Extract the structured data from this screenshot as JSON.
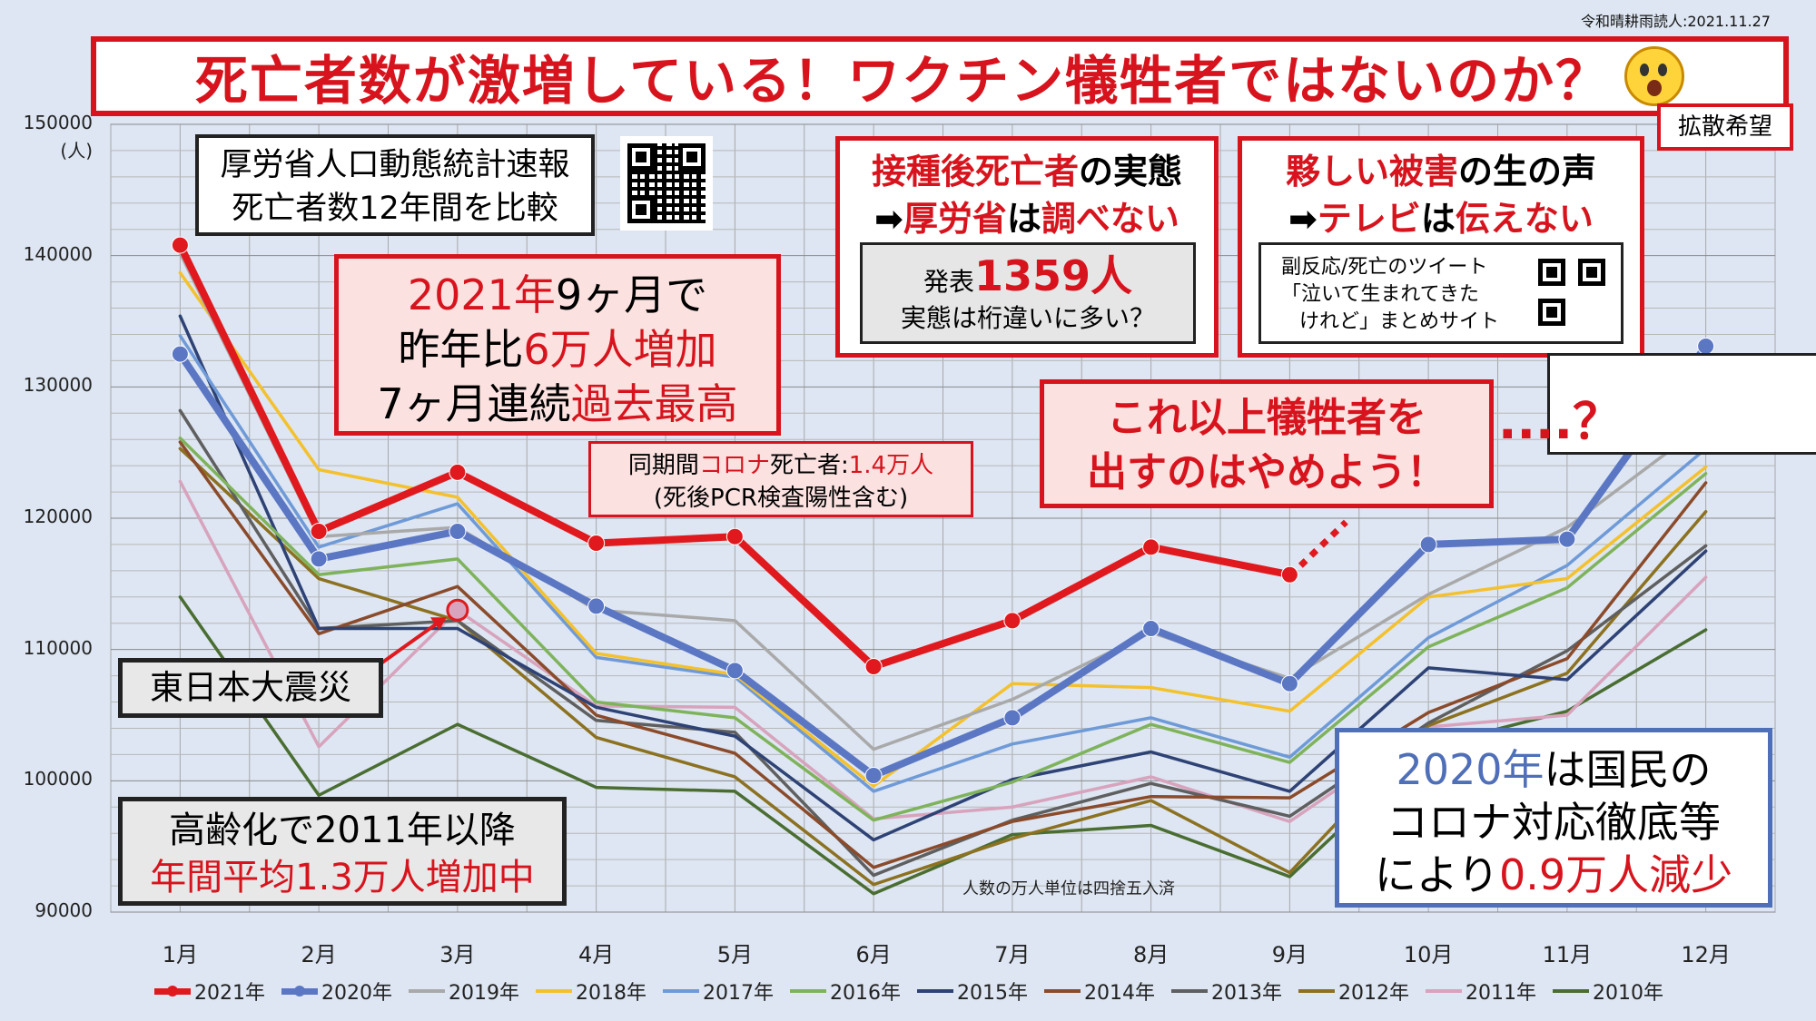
{
  "credit": "令和晴耕雨読人:2021.11.27",
  "title": "死亡者数が激増している！ワクチン犠牲者ではないのか？",
  "spread": "拡散希望",
  "source_box": {
    "line1": "厚労省人口動態統計速報",
    "line2": "死亡者数12年間を比較"
  },
  "box2021": {
    "l1_red": "2021年",
    "l1_black": "9ヶ月で",
    "l2_black": "昨年比",
    "l2_red": "6万人増加",
    "l3_black": "7ヶ月連続",
    "l3_red": "過去最高"
  },
  "covid_box": {
    "pre": "同期間",
    "red": "コロナ",
    "mid": "死亡者:",
    "val": "1.4万人",
    "line2": "(死後PCR検査陽性含む)"
  },
  "post_box": {
    "h1_red": "接種後死亡者",
    "h1_black": "の実態",
    "h2_arrow": "➡",
    "h2_red1": "厚労省",
    "h2_black1": "は",
    "h2_red2": "調べない",
    "inner_pre": "発表",
    "inner_big": "1359人",
    "inner_line2": "実態は桁違いに多い？"
  },
  "harm_box": {
    "h1_red": "夥しい被害",
    "h1_black": "の生の声",
    "h2_arrow": "➡",
    "h2_red1": "テレビ",
    "h2_black1": "は",
    "h2_red2": "伝えない",
    "inner1": "副反応/死亡のツイート",
    "inner2": "「泣いて生まれてきた",
    "inner3": "けれど」まとめサイト"
  },
  "stop_box": {
    "line1": "これ以上犠牲者を",
    "line2": "出すのはやめよう！"
  },
  "dots": "....？",
  "quake_box": "東日本大震災",
  "aging_box": {
    "line1": "高齢化で2011年以降",
    "line2": "年間平均1.3万人増加中"
  },
  "box2020": {
    "l1_blue": "2020年",
    "l1_black": "は国民の",
    "l2": "コロナ対応徹底等",
    "l3_black": "により",
    "l3_red": "0.9万人減少"
  },
  "note": "人数の万人単位は四捨五入済",
  "colors": {
    "accent_red": "#d7141d",
    "accent_blue": "#4f6fb8",
    "background": "#dde6f2"
  },
  "chart_data": {
    "type": "line",
    "ylabel": "(人)",
    "ylim": [
      90000,
      150000
    ],
    "yticks": [
      90000,
      100000,
      110000,
      120000,
      130000,
      140000,
      150000
    ],
    "categories": [
      "1月",
      "2月",
      "3月",
      "4月",
      "5月",
      "6月",
      "7月",
      "8月",
      "9月",
      "10月",
      "11月",
      "12月"
    ],
    "grid": true,
    "legend_position": "bottom",
    "series": [
      {
        "name": "2021年",
        "color": "#e0191e",
        "values": [
          140800,
          119000,
          123500,
          118100,
          118600,
          108700,
          112200,
          117800,
          115700,
          null,
          null,
          null
        ]
      },
      {
        "name": "2020年",
        "color": "#5b77c4",
        "values": [
          132500,
          116900,
          119000,
          113300,
          108400,
          100400,
          104800,
          111600,
          107400,
          118000,
          118400,
          133100
        ]
      },
      {
        "name": "2019年",
        "color": "#a9a9a9",
        "values": [
          140200,
          118600,
          119300,
          113000,
          112200,
          102400,
          106200,
          111300,
          107800,
          114200,
          119300,
          127200
        ]
      },
      {
        "name": "2018年",
        "color": "#f4c12e",
        "values": [
          138700,
          123700,
          121600,
          109700,
          108100,
          99600,
          107400,
          107100,
          105300,
          114000,
          115400,
          123900
        ]
      },
      {
        "name": "2017年",
        "color": "#6f9ad8",
        "values": [
          133900,
          117800,
          121100,
          109400,
          107900,
          99200,
          102800,
          104800,
          101800,
          110900,
          116400,
          125300
        ]
      },
      {
        "name": "2016年",
        "color": "#7fb35b",
        "values": [
          126100,
          115700,
          116900,
          106000,
          104800,
          97000,
          99900,
          104300,
          101400,
          110200,
          114700,
          123400
        ]
      },
      {
        "name": "2015年",
        "color": "#2e4275",
        "values": [
          135400,
          111600,
          111600,
          105600,
          103400,
          95500,
          100100,
          102200,
          99200,
          108600,
          107700,
          117500
        ]
      },
      {
        "name": "2014年",
        "color": "#8b4b2b",
        "values": [
          125800,
          111200,
          114800,
          105000,
          102100,
          93400,
          96900,
          98800,
          98700,
          105200,
          109300,
          122700
        ]
      },
      {
        "name": "2013年",
        "color": "#5f5f5f",
        "values": [
          128200,
          111600,
          112200,
          104600,
          103700,
          92800,
          97000,
          99800,
          97300,
          104400,
          109900,
          117900
        ]
      },
      {
        "name": "2012年",
        "color": "#8c7121",
        "values": [
          125300,
          115400,
          112200,
          103300,
          100300,
          92100,
          95600,
          98500,
          93000,
          104200,
          108200,
          120500
        ]
      },
      {
        "name": "2011年",
        "color": "#d8a3bc",
        "values": [
          122800,
          102600,
          113000,
          105700,
          105600,
          97100,
          98000,
          100300,
          96900,
          104100,
          105000,
          115500
        ]
      },
      {
        "name": "2010年",
        "color": "#4a6d31",
        "values": [
          114000,
          98900,
          104300,
          99500,
          99200,
          91400,
          95900,
          96600,
          92700,
          102600,
          105300,
          111500
        ]
      }
    ]
  }
}
